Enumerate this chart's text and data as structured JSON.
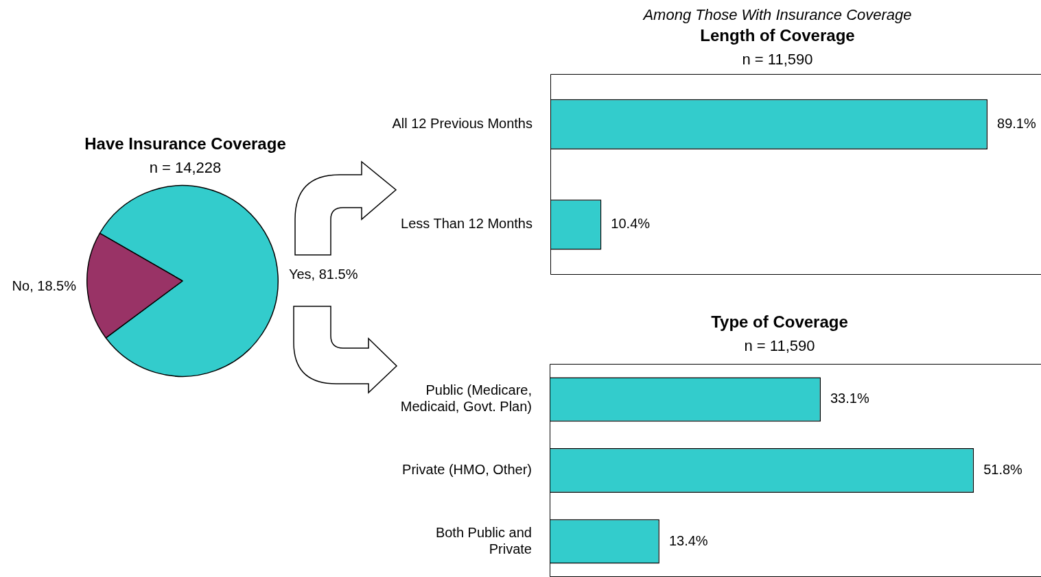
{
  "chart_data": [
    {
      "type": "pie",
      "title": "Have Insurance Coverage",
      "subtitle": "n = 14,228",
      "categories": [
        "Yes",
        "No"
      ],
      "values": [
        81.5,
        18.5
      ],
      "colors": [
        "#33cccc",
        "#993366"
      ],
      "value_labels": [
        "81.5%",
        "18.5%"
      ]
    },
    {
      "type": "bar",
      "orientation": "horizontal",
      "annotations": [
        "Among Those With Insurance Coverage"
      ],
      "title": "Length of Coverage",
      "subtitle": "n = 11,590",
      "categories": [
        "All 12 Previous Months",
        "Less Than 12 Months"
      ],
      "values": [
        89.1,
        10.4
      ],
      "color": "#33cccc",
      "xlim": [
        0,
        100
      ],
      "tick_labels": "y",
      "value_labels": [
        "89.1%",
        "10.4%"
      ]
    },
    {
      "type": "bar",
      "orientation": "horizontal",
      "title": "Type of Coverage",
      "subtitle": "n = 11,590",
      "categories": [
        "Public (Medicare, Medicaid, Govt. Plan)",
        "Private (HMO, Other)",
        "Both Public and Private"
      ],
      "values": [
        33.1,
        51.8,
        13.4
      ],
      "color": "#33cccc",
      "xlim": [
        0,
        60
      ],
      "tick_labels": "y",
      "value_labels": [
        "33.1%",
        "51.8%",
        "13.4%"
      ]
    }
  ]
}
